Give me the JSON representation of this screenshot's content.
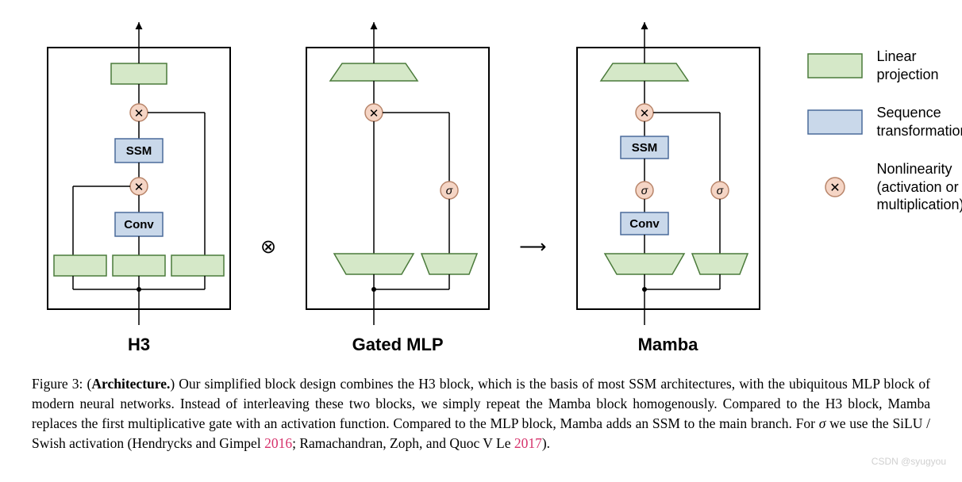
{
  "colors": {
    "green_fill": "#d5e8c8",
    "green_stroke": "#4a7a3a",
    "blue_fill": "#c9d8ea",
    "blue_stroke": "#4a6a9a",
    "peach_fill": "#f5d5c5",
    "peach_stroke": "#b8856a",
    "box_stroke": "#000000",
    "line_stroke": "#000000",
    "ref_color": "#d6336c"
  },
  "blocks": {
    "h3": {
      "label": "H3",
      "ssm_label": "SSM",
      "conv_label": "Conv"
    },
    "gated_mlp": {
      "label": "Gated MLP",
      "sigma": "σ"
    },
    "mamba": {
      "label": "Mamba",
      "ssm_label": "SSM",
      "conv_label": "Conv",
      "sigma": "σ"
    }
  },
  "connectors": {
    "combine": "⊗",
    "arrow": "⟶"
  },
  "legend": {
    "linear": "Linear\nprojection",
    "sequence": "Sequence\ntransformation",
    "nonlin": "Nonlinearity\n(activation or\nmultiplication)",
    "nonlin_symbol": "⊗"
  },
  "caption": {
    "fig_num": "Figure 3:",
    "arch": "Architecture.",
    "body1": " Our simplified block design combines the H3 block, which is the basis of most SSM architectures, with the ubiquitous MLP block of modern neural networks. Instead of interleaving these two blocks, we simply repeat the Mamba block homogenously. Compared to the H3 block, Mamba replaces the first multiplicative gate with an activation function. Compared to the MLP block, Mamba adds an SSM to the main branch. For ",
    "sigma": "σ",
    "body2": " we use the SiLU / Swish activation (Hendrycks and Gimpel ",
    "ref1": "2016",
    "body3": "; Ramachandran, Zoph, and Quoc V Le ",
    "ref2": "2017",
    "body4": ")."
  },
  "watermark": "CSDN @syugyou",
  "svg": {
    "block_width": 270,
    "block_height": 380,
    "box_stroke_width": 2,
    "line_width": 1.5
  }
}
